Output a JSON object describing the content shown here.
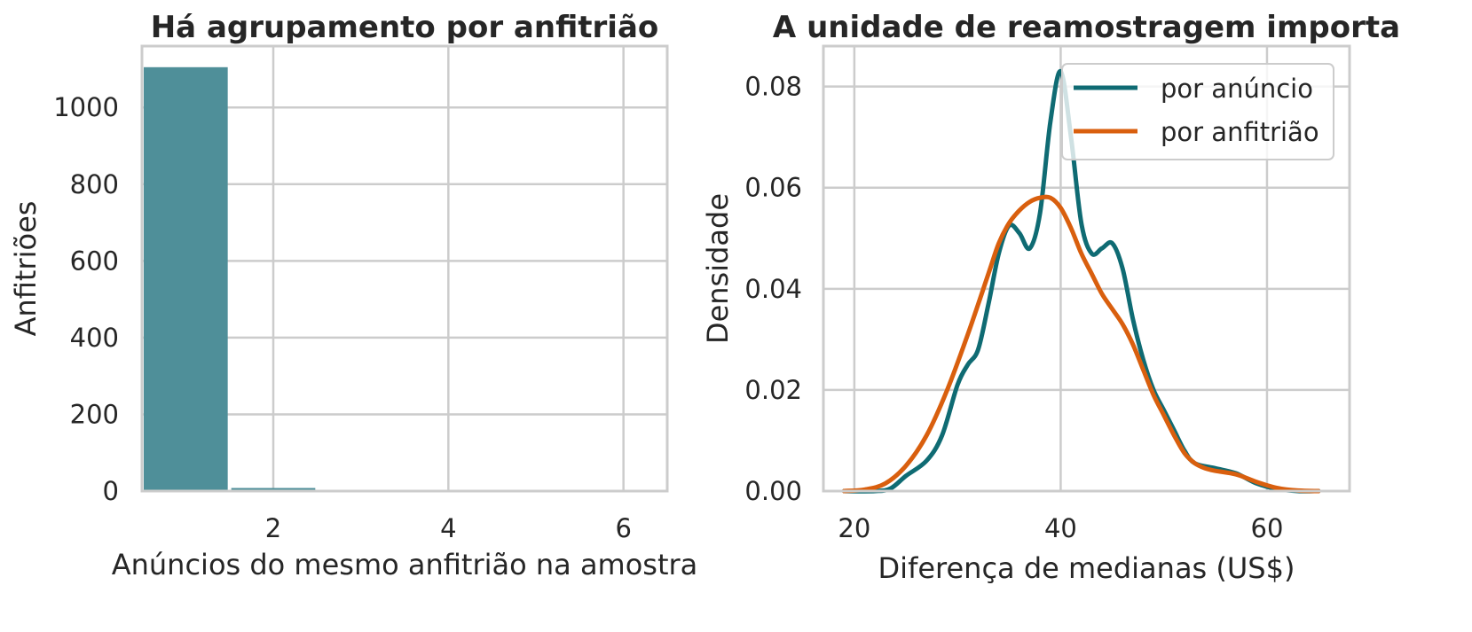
{
  "chart_data": [
    {
      "type": "bar",
      "title": "Há agrupamento por anfitrião",
      "xlabel": "Anúncios do mesmo anfitrião na amostra",
      "ylabel": "Anfitriões",
      "categories": [
        1,
        2,
        3,
        4,
        5,
        6
      ],
      "values": [
        1105,
        8,
        1,
        0,
        0,
        0
      ],
      "xlim": [
        0.5,
        6.5
      ],
      "ylim": [
        0,
        1160
      ],
      "xticks": [
        "2",
        "4",
        "6"
      ],
      "yticks": [
        "0",
        "200",
        "400",
        "600",
        "800",
        "1000"
      ],
      "grid": true,
      "bar_color": "#4f8f99"
    },
    {
      "type": "line",
      "title": "A unidade de reamostragem importa",
      "xlabel": "Diferença de medianas (US$)",
      "ylabel": "Densidade",
      "xlim": [
        17,
        68
      ],
      "ylim": [
        0,
        0.088
      ],
      "xticks": [
        "20",
        "40",
        "60"
      ],
      "yticks": [
        "0.00",
        "0.02",
        "0.04",
        "0.06",
        "0.08"
      ],
      "grid": true,
      "legend": "top-right",
      "series": [
        {
          "name": "por anúncio",
          "color": "#0f6b73",
          "x": [
            19,
            22,
            23.5,
            25,
            27,
            28.5,
            30,
            31,
            32,
            33,
            34,
            35,
            36,
            37,
            38,
            39,
            40,
            41,
            42,
            43,
            44,
            45,
            46,
            47,
            48,
            49,
            50,
            51,
            52,
            53,
            55,
            57,
            59,
            61,
            63,
            65
          ],
          "y": [
            0,
            0,
            0.0005,
            0.003,
            0.006,
            0.011,
            0.021,
            0.025,
            0.028,
            0.037,
            0.047,
            0.0525,
            0.051,
            0.048,
            0.055,
            0.073,
            0.083,
            0.07,
            0.053,
            0.047,
            0.048,
            0.049,
            0.044,
            0.034,
            0.026,
            0.02,
            0.016,
            0.012,
            0.008,
            0.0055,
            0.0045,
            0.0035,
            0.0015,
            0.0004,
            0,
            0
          ]
        },
        {
          "name": "por anfitrião",
          "color": "#d95f0e",
          "x": [
            19,
            21,
            23,
            25,
            27,
            29,
            31,
            33,
            34,
            35,
            36,
            37,
            38,
            39,
            40,
            41,
            42,
            43,
            44,
            45,
            46,
            47,
            48,
            49,
            50,
            51,
            52,
            53,
            54,
            55,
            57,
            59,
            61,
            63,
            65
          ],
          "y": [
            0,
            0.0003,
            0.0015,
            0.005,
            0.011,
            0.02,
            0.031,
            0.043,
            0.049,
            0.053,
            0.0555,
            0.0572,
            0.058,
            0.058,
            0.056,
            0.052,
            0.047,
            0.043,
            0.039,
            0.036,
            0.033,
            0.029,
            0.024,
            0.019,
            0.015,
            0.011,
            0.0075,
            0.0055,
            0.0045,
            0.004,
            0.0033,
            0.0018,
            0.0006,
            0.0001,
            0
          ]
        }
      ]
    }
  ]
}
